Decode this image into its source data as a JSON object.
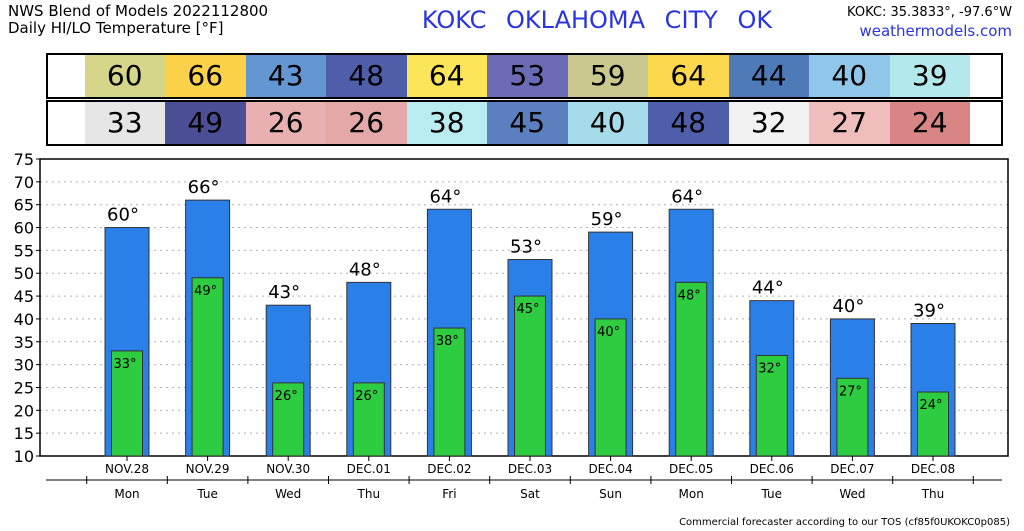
{
  "header": {
    "line1": "NWS Blend of Models 2022112800",
    "line2": "Daily HI/LO Temperature [°F]",
    "station": "KOKC   OKLAHOMA CITY   OK",
    "coords": "KOKC: 35.3833°, -97.6°W",
    "site": "weathermodels.com"
  },
  "footer": "Commercial forecaster according to our TOS (cf85f0UKOKC0p085)",
  "colors": {
    "hi_bar": "#2b7fe8",
    "lo_bar": "#2ecc40",
    "hi_cells": [
      "#d6d68a",
      "#fcd24a",
      "#6496d4",
      "#4e5ea8",
      "#fde559",
      "#6a6ab5",
      "#c9c98f",
      "#fcd84e",
      "#4f7ab8",
      "#8fc6ea",
      "#b3e9ec"
    ],
    "lo_cells": [
      "#e6e6e6",
      "#4c4f96",
      "#e8b0b0",
      "#e4a8a8",
      "#b8ecf0",
      "#5b7fbf",
      "#a6dcea",
      "#4e5ea8",
      "#f2f2f2",
      "#f0bdbd",
      "#d98585"
    ]
  },
  "chart_data": {
    "type": "bar",
    "categories": [
      "NOV.28",
      "NOV.29",
      "NOV.30",
      "DEC.01",
      "DEC.02",
      "DEC.03",
      "DEC.04",
      "DEC.05",
      "DEC.06",
      "DEC.07",
      "DEC.08"
    ],
    "weekdays": [
      "Mon",
      "Tue",
      "Wed",
      "Thu",
      "Fri",
      "Sat",
      "Sun",
      "Mon",
      "Tue",
      "Wed",
      "Thu"
    ],
    "series": [
      {
        "values": [
          60,
          66,
          43,
          48,
          64,
          53,
          59,
          64,
          44,
          40,
          39
        ]
      },
      {
        "values": [
          33,
          49,
          26,
          26,
          38,
          45,
          40,
          48,
          32,
          27,
          24
        ]
      }
    ],
    "ylim": [
      10,
      75
    ],
    "yticks": [
      10,
      15,
      20,
      25,
      30,
      35,
      40,
      45,
      50,
      55,
      60,
      65,
      70,
      75
    ],
    "grid": true
  }
}
